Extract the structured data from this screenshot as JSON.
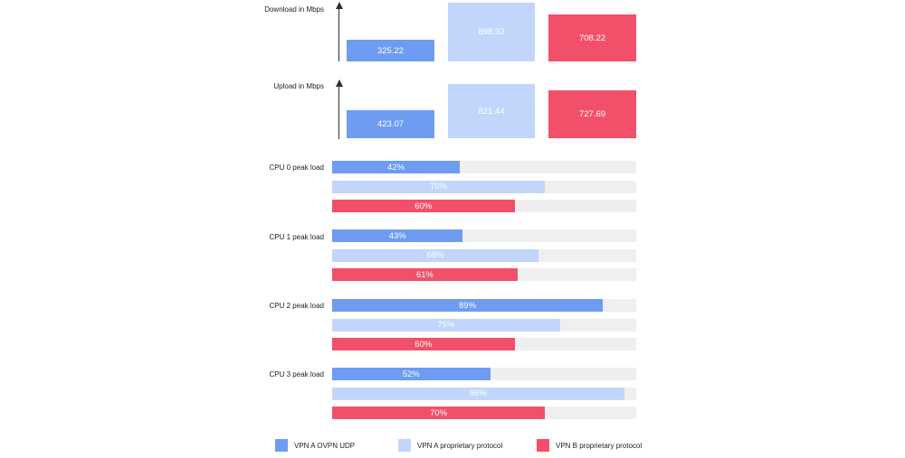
{
  "colors": {
    "vpn_a_udp": "#6d9cf2",
    "vpn_a_prop": "#c2d6fb",
    "vpn_b_prop": "#f2506a",
    "track": "#efefef"
  },
  "chart_data": [
    {
      "type": "bar",
      "title": "Download in Mbps",
      "ylim": [
        0,
        1000
      ],
      "series": [
        {
          "name": "VPN A OVPN UDP",
          "values": [
            325.22
          ],
          "labels": [
            "325.22"
          ]
        },
        {
          "name": "VPN A proprietary protocol",
          "values": [
            898.92
          ],
          "labels": [
            "898.92"
          ]
        },
        {
          "name": "VPN B proprietary protocol",
          "values": [
            708.22
          ],
          "labels": [
            "708.22"
          ]
        }
      ]
    },
    {
      "type": "bar",
      "title": "Upload in Mbps",
      "ylim": [
        0,
        1000
      ],
      "series": [
        {
          "name": "VPN A OVPN UDP",
          "values": [
            423.07
          ],
          "labels": [
            "423.07"
          ]
        },
        {
          "name": "VPN A proprietary protocol",
          "values": [
            821.44
          ],
          "labels": [
            "821.44"
          ]
        },
        {
          "name": "VPN B proprietary protocol",
          "values": [
            727.69
          ],
          "labels": [
            "727.69"
          ]
        }
      ]
    },
    {
      "type": "bar",
      "orientation": "horizontal",
      "xlim": [
        0,
        100
      ],
      "categories": [
        "CPU 0 peak load",
        "CPU 1 peak load",
        "CPU 2 peak load",
        "CPU 3 peak load"
      ],
      "series": [
        {
          "name": "VPN A OVPN UDP",
          "values": [
            42,
            43,
            89,
            52
          ],
          "labels": [
            "42%",
            "43%",
            "89%",
            "52%"
          ]
        },
        {
          "name": "VPN A proprietary protocol",
          "values": [
            70,
            68,
            75,
            96
          ],
          "labels": [
            "70%",
            "68%",
            "75%",
            "96%"
          ]
        },
        {
          "name": "VPN B proprietary protocol",
          "values": [
            60,
            61,
            60,
            70
          ],
          "labels": [
            "60%",
            "61%",
            "60%",
            "70%"
          ]
        }
      ]
    }
  ],
  "legend": [
    {
      "label": "VPN A OVPN UDP",
      "color_key": "vpn_a_udp"
    },
    {
      "label": "VPN A proprietary protocol",
      "color_key": "vpn_a_prop"
    },
    {
      "label": "VPN B proprietary protocol",
      "color_key": "vpn_b_prop"
    }
  ]
}
